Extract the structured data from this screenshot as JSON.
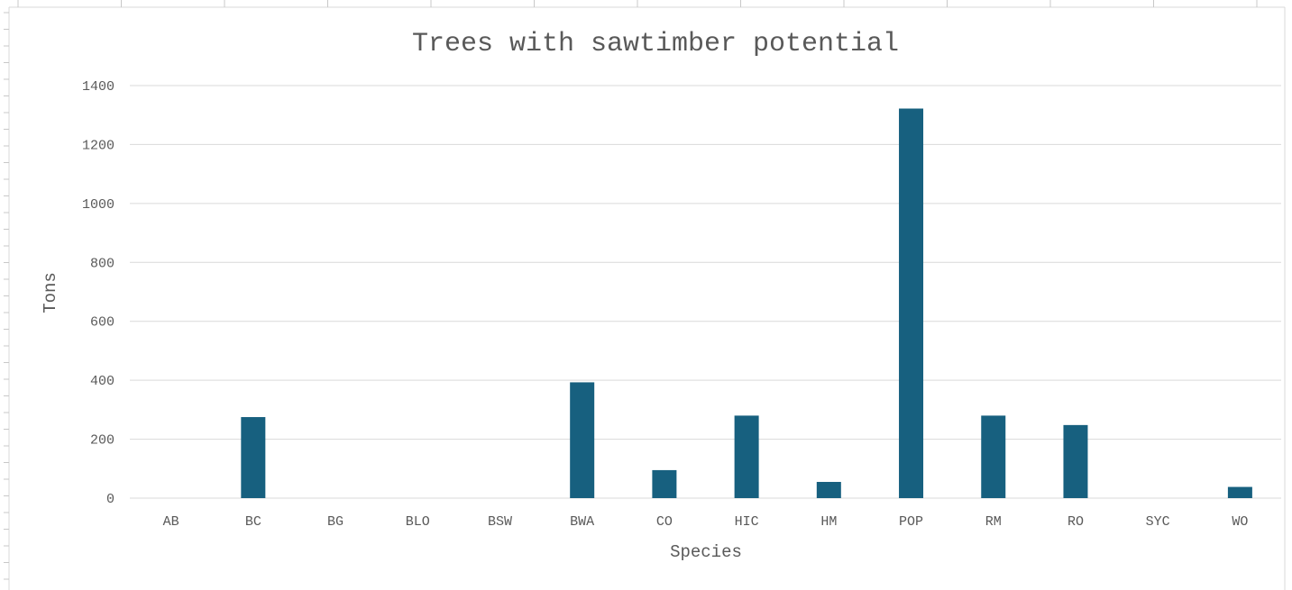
{
  "chart_data": {
    "type": "bar",
    "title": "Trees with sawtimber potential",
    "xlabel": "Species",
    "ylabel": "Tons",
    "categories": [
      "AB",
      "BC",
      "BG",
      "BLO",
      "BSW",
      "BWA",
      "CO",
      "HIC",
      "HM",
      "POP",
      "RM",
      "RO",
      "SYC",
      "WO"
    ],
    "values": [
      0,
      275,
      0,
      0,
      0,
      393,
      95,
      280,
      55,
      1322,
      280,
      248,
      0,
      38
    ],
    "ylim": [
      0,
      1400
    ],
    "yticks": [
      "0",
      "200",
      "400",
      "600",
      "800",
      "1000",
      "1200",
      "1400"
    ],
    "grid": true,
    "legend": "none",
    "bar_color": "#17607f"
  }
}
